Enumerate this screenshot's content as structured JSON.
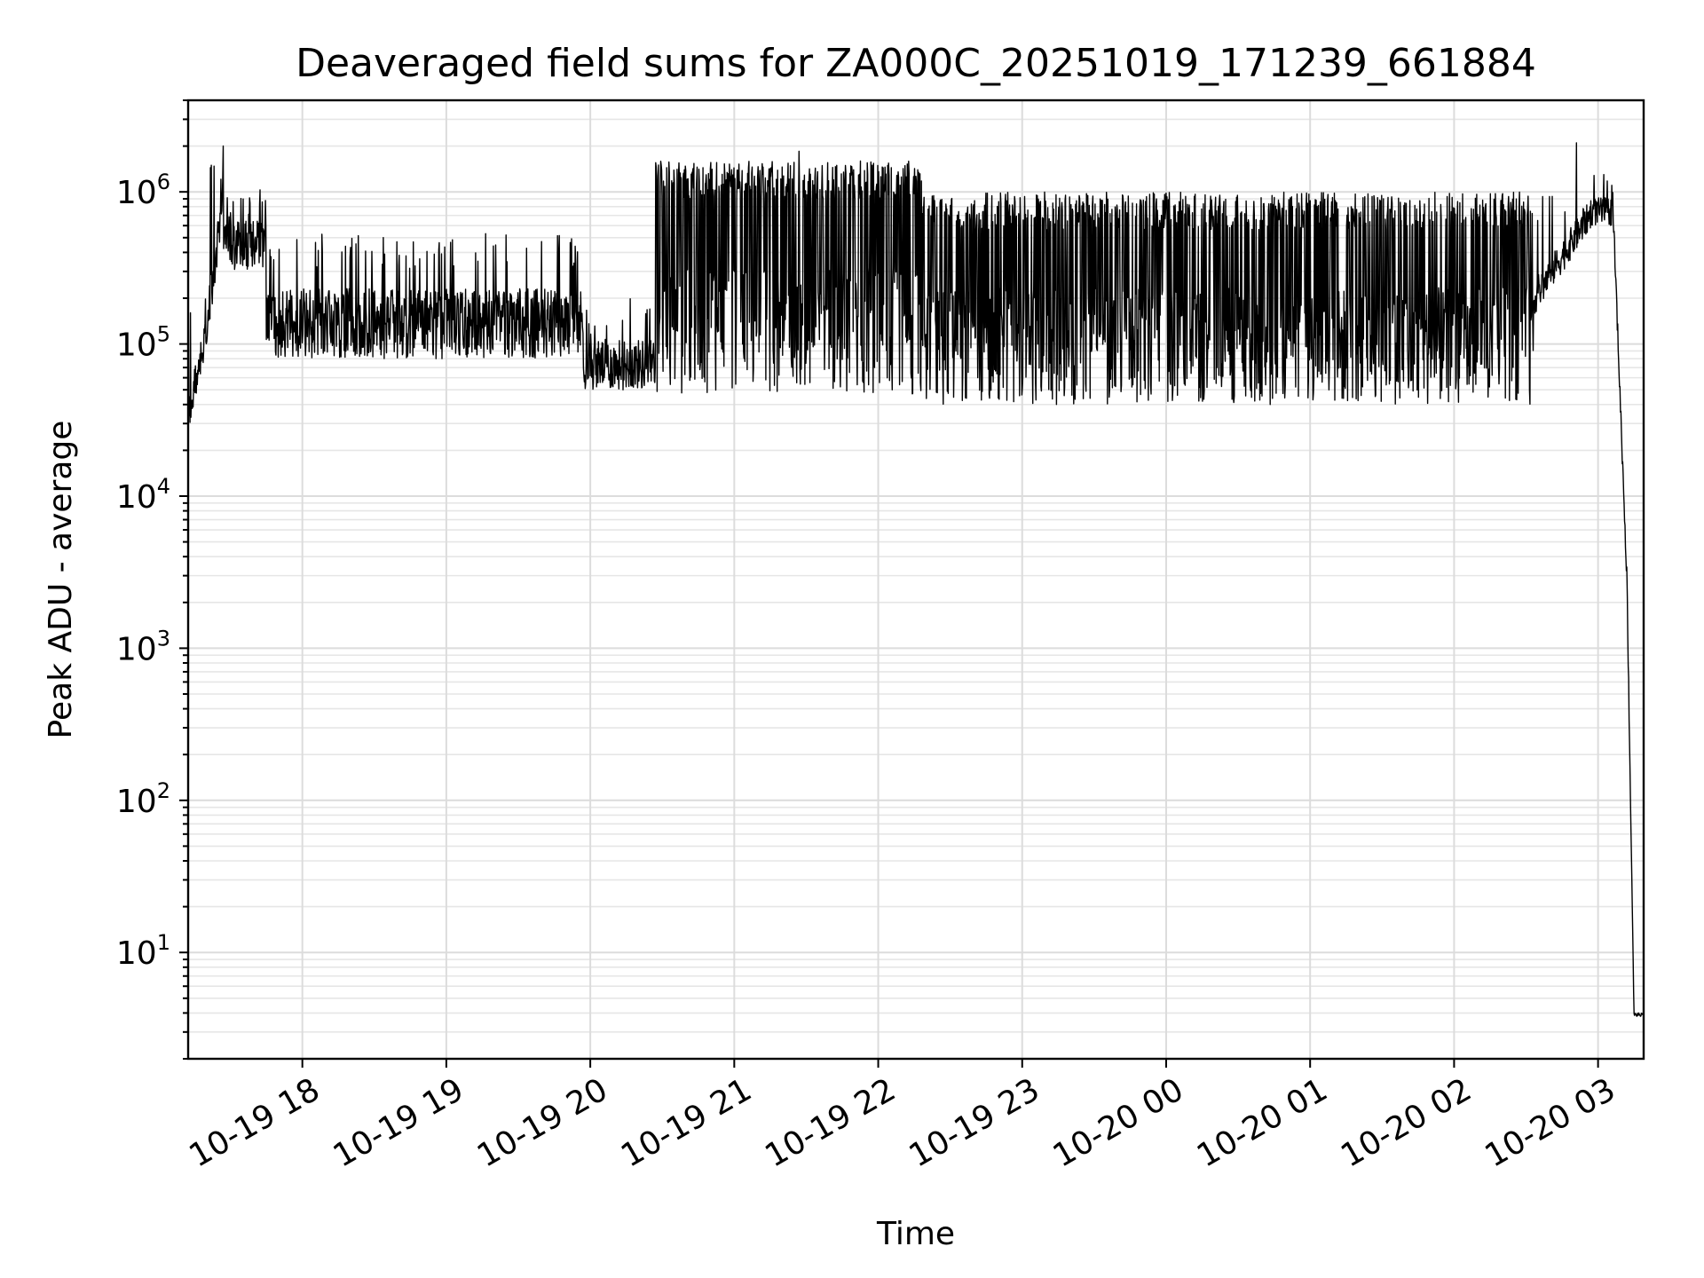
{
  "chart_data": {
    "type": "line",
    "title": "Deaveraged field sums for ZA000C_20251019_171239_661884",
    "xlabel": "Time",
    "ylabel": "Peak ADU - average",
    "yscale": "log",
    "ylim": [
      2,
      4000000
    ],
    "xlim_hours": [
      17.2067,
      27.3167
    ],
    "grid": true,
    "y_ticks": [
      {
        "value": 10,
        "base": "10",
        "exp": "1"
      },
      {
        "value": 100,
        "base": "10",
        "exp": "2"
      },
      {
        "value": 1000,
        "base": "10",
        "exp": "3"
      },
      {
        "value": 10000,
        "base": "10",
        "exp": "4"
      },
      {
        "value": 100000,
        "base": "10",
        "exp": "5"
      },
      {
        "value": 1000000,
        "base": "10",
        "exp": "6"
      }
    ],
    "x_ticks": [
      {
        "hour": 18,
        "label": "10-19 18"
      },
      {
        "hour": 19,
        "label": "10-19 19"
      },
      {
        "hour": 20,
        "label": "10-19 20"
      },
      {
        "hour": 21,
        "label": "10-19 21"
      },
      {
        "hour": 22,
        "label": "10-19 22"
      },
      {
        "hour": 23,
        "label": "10-19 23"
      },
      {
        "hour": 24,
        "label": "10-20 00"
      },
      {
        "hour": 25,
        "label": "10-20 01"
      },
      {
        "hour": 26,
        "label": "10-20 02"
      },
      {
        "hour": 27,
        "label": "10-20 03"
      }
    ],
    "series": [
      {
        "name": "Peak ADU - average",
        "color": "#000000",
        "segments": [
          {
            "start_hour": 17.2067,
            "end_hour": 17.35,
            "low": 25000,
            "high": 180000,
            "trend": "rise",
            "spike_prob": 0.05
          },
          {
            "start_hour": 17.35,
            "end_hour": 17.45,
            "low": 100000,
            "high": 1400000,
            "trend": "rise",
            "spike_prob": 0.1
          },
          {
            "start_hour": 17.45,
            "end_hour": 17.75,
            "low": 300000,
            "high": 1200000,
            "trend": "flat",
            "spike_prob": 0.1
          },
          {
            "start_hour": 17.75,
            "end_hour": 19.95,
            "low": 80000,
            "high": 550000,
            "trend": "flat",
            "spike_prob": 0.08
          },
          {
            "start_hour": 19.95,
            "end_hour": 20.45,
            "low": 50000,
            "high": 200000,
            "trend": "flat",
            "spike_prob": 0.08
          },
          {
            "start_hour": 20.45,
            "end_hour": 22.3,
            "low": 45000,
            "high": 1600000,
            "trend": "flat",
            "spike_prob": 0.5
          },
          {
            "start_hour": 22.3,
            "end_hour": 26.55,
            "low": 40000,
            "high": 1000000,
            "trend": "flat",
            "spike_prob": 0.4
          },
          {
            "start_hour": 26.55,
            "end_hour": 26.95,
            "low": 150000,
            "high": 900000,
            "trend": "rise",
            "spike_prob": 0.1
          },
          {
            "start_hour": 26.95,
            "end_hour": 27.1,
            "low": 600000,
            "high": 1300000,
            "trend": "flat",
            "spike_prob": 0.05
          },
          {
            "start_hour": 27.1,
            "end_hour": 27.2,
            "low": 3000,
            "high": 1000000,
            "trend": "fall",
            "spike_prob": 0
          },
          {
            "start_hour": 27.2,
            "end_hour": 27.25,
            "low": 4,
            "high": 3000,
            "trend": "fall",
            "spike_prob": 0
          },
          {
            "start_hour": 27.25,
            "end_hour": 27.3167,
            "low": 3.8,
            "high": 4,
            "trend": "flat",
            "spike_prob": 0
          }
        ],
        "notable_points": [
          {
            "hour": 17.45,
            "value": 2000000
          },
          {
            "hour": 21.45,
            "value": 1850000
          },
          {
            "hour": 26.85,
            "value": 2100000
          },
          {
            "hour": 27.04,
            "value": 1300000
          },
          {
            "hour": 27.3167,
            "value": 3.8
          }
        ]
      }
    ]
  }
}
